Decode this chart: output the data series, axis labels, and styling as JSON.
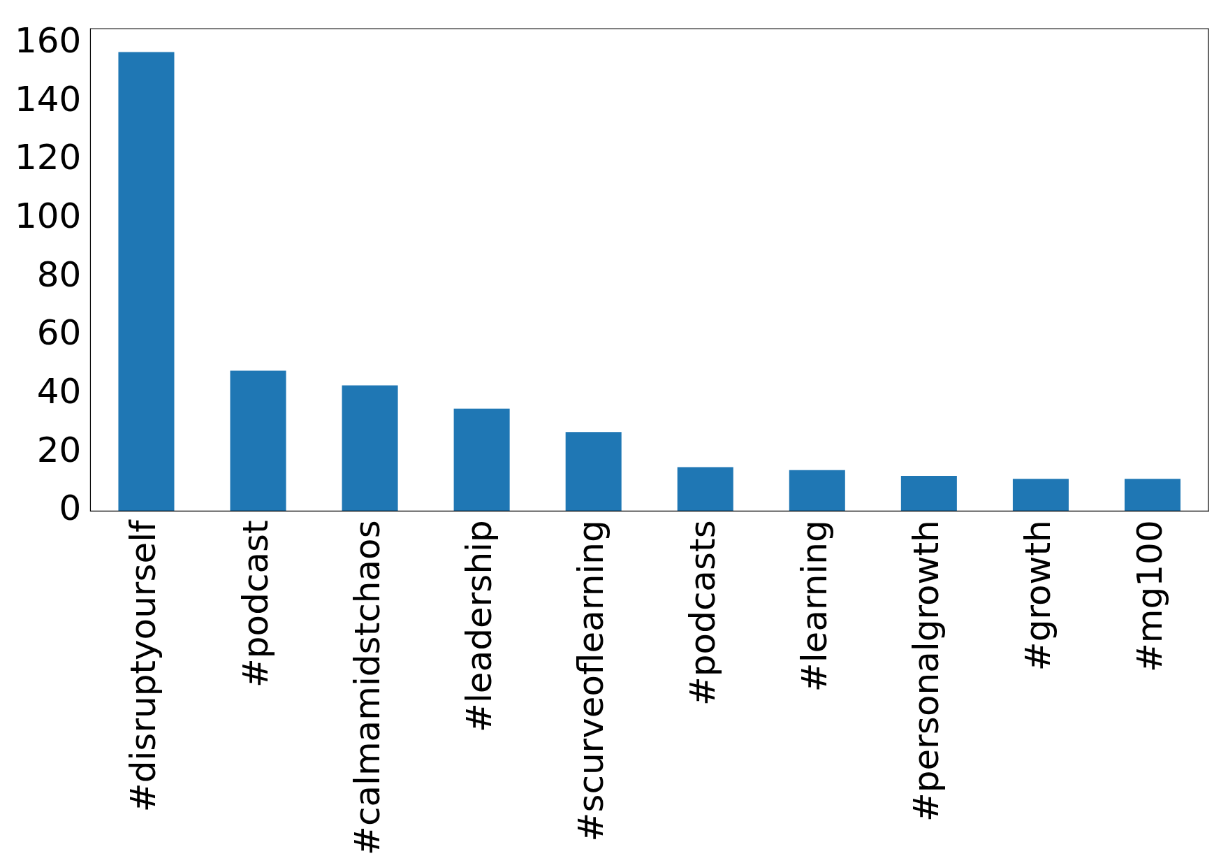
{
  "chart_data": {
    "type": "bar",
    "categories": [
      "#disruptyourself",
      "#podcast",
      "#calmamidstchaos",
      "#leadership",
      "#scurveoflearning",
      "#podcasts",
      "#learning",
      "#personalgrowth",
      "#growth",
      "#mg100"
    ],
    "values": [
      157,
      48,
      43,
      35,
      27,
      15,
      14,
      12,
      11,
      11
    ],
    "color": "#1f77b4",
    "ylim": [
      0,
      165
    ],
    "yticks": [
      0,
      20,
      40,
      60,
      80,
      100,
      120,
      140,
      160
    ],
    "grid": false,
    "legend": false
  }
}
